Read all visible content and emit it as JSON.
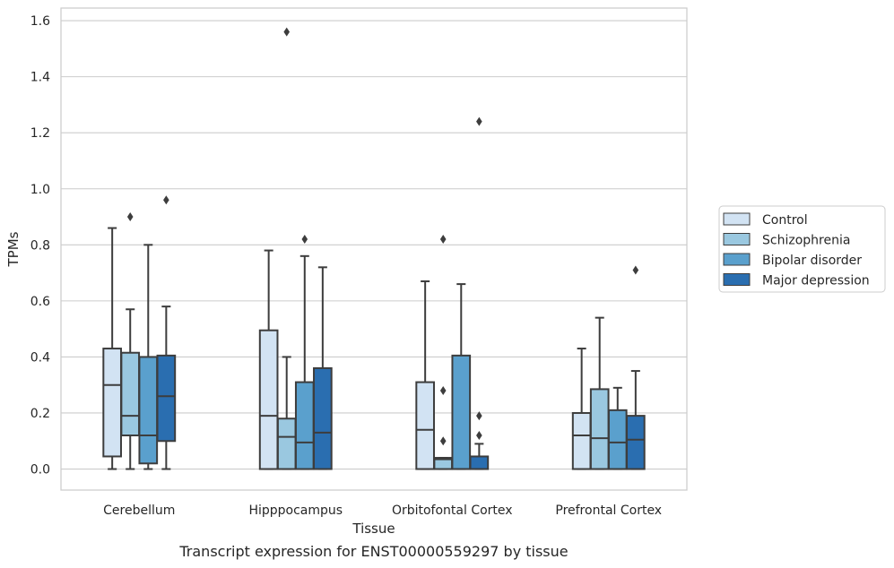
{
  "chart_data": {
    "type": "boxplot",
    "title": "",
    "caption": "Transcript expression for ENST00000559297 by tissue",
    "xlabel": "Tissue",
    "ylabel": "TPMs",
    "ylim": [
      -0.075,
      1.645
    ],
    "yticks": [
      "0.0",
      "0.2",
      "0.4",
      "0.6",
      "0.8",
      "1.0",
      "1.2",
      "1.4",
      "1.6"
    ],
    "ytick_values": [
      0.0,
      0.2,
      0.4,
      0.6,
      0.8,
      1.0,
      1.2,
      1.4,
      1.6
    ],
    "grid": true,
    "legend_position": "right",
    "categories": [
      "Cerebellum",
      "Hipppocampus",
      "Orbitofontal Cortex",
      "Prefrontal Cortex"
    ],
    "series": [
      {
        "name": "Control",
        "color": "#d2e3f3",
        "boxes": [
          {
            "whislo": 0.0,
            "q1": 0.045,
            "med": 0.3,
            "q3": 0.43,
            "whishi": 0.86,
            "fliers": []
          },
          {
            "whislo": 0.0,
            "q1": 0.0,
            "med": 0.19,
            "q3": 0.495,
            "whishi": 0.78,
            "fliers": []
          },
          {
            "whislo": 0.0,
            "q1": 0.0,
            "med": 0.14,
            "q3": 0.31,
            "whishi": 0.67,
            "fliers": []
          },
          {
            "whislo": 0.0,
            "q1": 0.0,
            "med": 0.12,
            "q3": 0.2,
            "whishi": 0.43,
            "fliers": []
          }
        ]
      },
      {
        "name": "Schizophrenia",
        "color": "#9ac8e0",
        "boxes": [
          {
            "whislo": 0.0,
            "q1": 0.12,
            "med": 0.19,
            "q3": 0.415,
            "whishi": 0.57,
            "fliers": [
              0.9
            ]
          },
          {
            "whislo": 0.0,
            "q1": 0.0,
            "med": 0.115,
            "q3": 0.18,
            "whishi": 0.4,
            "fliers": [
              1.56
            ]
          },
          {
            "whislo": 0.0,
            "q1": 0.0,
            "med": 0.035,
            "q3": 0.04,
            "whishi": 0.04,
            "fliers": [
              0.1,
              0.28,
              0.82
            ]
          },
          {
            "whislo": 0.0,
            "q1": 0.0,
            "med": 0.11,
            "q3": 0.285,
            "whishi": 0.54,
            "fliers": []
          }
        ]
      },
      {
        "name": "Bipolar disorder",
        "color": "#5aa0cd",
        "boxes": [
          {
            "whislo": 0.0,
            "q1": 0.02,
            "med": 0.12,
            "q3": 0.4,
            "whishi": 0.8,
            "fliers": []
          },
          {
            "whislo": 0.0,
            "q1": 0.0,
            "med": 0.095,
            "q3": 0.31,
            "whishi": 0.76,
            "fliers": [
              0.82
            ]
          },
          {
            "whislo": 0.0,
            "q1": 0.0,
            "med": 0.0,
            "q3": 0.405,
            "whishi": 0.66,
            "fliers": []
          },
          {
            "whislo": 0.0,
            "q1": 0.0,
            "med": 0.095,
            "q3": 0.21,
            "whishi": 0.29,
            "fliers": []
          }
        ]
      },
      {
        "name": "Major depression",
        "color": "#2a6eb0",
        "boxes": [
          {
            "whislo": 0.0,
            "q1": 0.1,
            "med": 0.26,
            "q3": 0.405,
            "whishi": 0.58,
            "fliers": [
              0.96
            ]
          },
          {
            "whislo": 0.0,
            "q1": 0.0,
            "med": 0.13,
            "q3": 0.36,
            "whishi": 0.72,
            "fliers": []
          },
          {
            "whislo": 0.0,
            "q1": 0.0,
            "med": 0.0,
            "q3": 0.045,
            "whishi": 0.09,
            "fliers": [
              0.12,
              0.19,
              1.24
            ]
          },
          {
            "whislo": 0.0,
            "q1": 0.0,
            "med": 0.105,
            "q3": 0.19,
            "whishi": 0.35,
            "fliers": [
              0.71
            ]
          }
        ]
      }
    ]
  }
}
